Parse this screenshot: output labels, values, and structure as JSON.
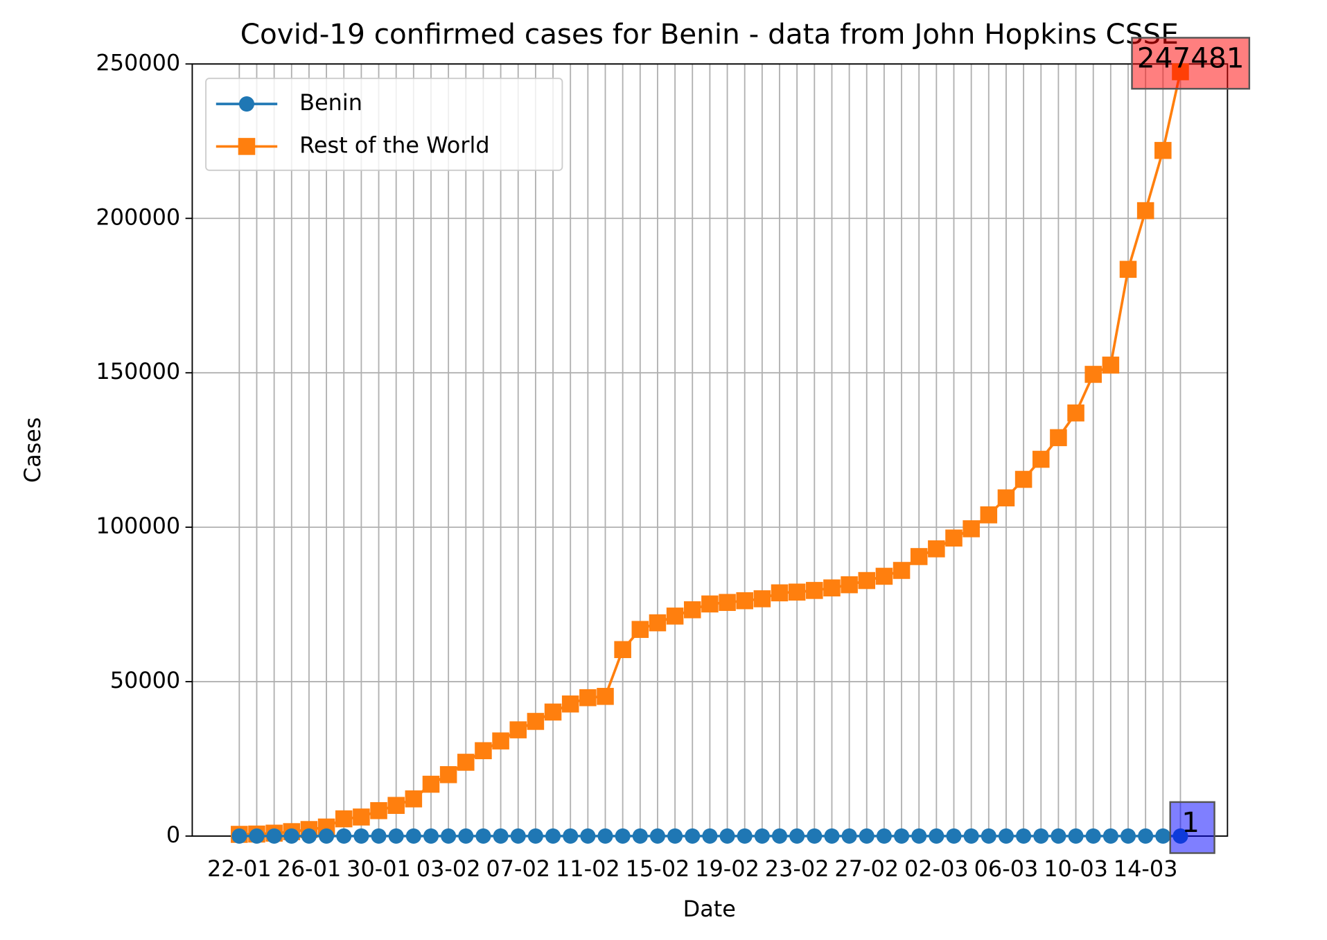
{
  "chart_data": {
    "type": "line",
    "title": "Covid-19 confirmed cases for Benin - data from John Hopkins CSSE",
    "xlabel": "Date",
    "ylabel": "Cases",
    "categories": [
      "22-01",
      null,
      null,
      null,
      "26-01",
      null,
      null,
      null,
      "30-01",
      null,
      null,
      null,
      "03-02",
      null,
      null,
      null,
      "07-02",
      null,
      null,
      null,
      "11-02",
      null,
      null,
      null,
      "15-02",
      null,
      null,
      null,
      "19-02",
      null,
      null,
      null,
      "23-02",
      null,
      null,
      null,
      "27-02",
      null,
      null,
      null,
      "02-03",
      null,
      null,
      null,
      "06-03",
      null,
      null,
      null,
      "10-03",
      null,
      null,
      null,
      "14-03",
      null,
      null
    ],
    "series": [
      {
        "name": "Benin",
        "color": "#1f77b4",
        "marker": "circle",
        "values": [
          0,
          0,
          0,
          0,
          0,
          0,
          0,
          0,
          0,
          0,
          0,
          0,
          0,
          0,
          0,
          0,
          0,
          0,
          0,
          0,
          0,
          0,
          0,
          0,
          0,
          0,
          0,
          0,
          0,
          0,
          0,
          0,
          0,
          0,
          0,
          0,
          0,
          0,
          0,
          0,
          0,
          0,
          0,
          0,
          0,
          0,
          0,
          0,
          0,
          0,
          0,
          0,
          0,
          0,
          1
        ],
        "annotation_color": "#0000ff"
      },
      {
        "name": "Rest of the World",
        "color": "#ff7f0e",
        "marker": "square",
        "values": [
          555,
          654,
          941,
          1434,
          2118,
          2927,
          5578,
          6166,
          8234,
          9927,
          12038,
          16787,
          19887,
          23898,
          27643,
          30802,
          34395,
          37129,
          40159,
          42768,
          44810,
          45228,
          60381,
          66908,
          69050,
          71233,
          73270,
          75154,
          75648,
          76205,
          76832,
          78756,
          78997,
          79528,
          80348,
          81377,
          82738,
          84122,
          86011,
          90500,
          93000,
          96500,
          99500,
          104000,
          109500,
          115500,
          122000,
          129000,
          137000,
          149500,
          152500,
          183500,
          202500,
          222000,
          247481
        ],
        "annotation_color": "#ff0000"
      }
    ],
    "ylim": [
      0,
      250000
    ],
    "yticks": [
      0,
      50000,
      100000,
      150000,
      200000,
      250000
    ],
    "grid": true,
    "legend": "upper left"
  }
}
